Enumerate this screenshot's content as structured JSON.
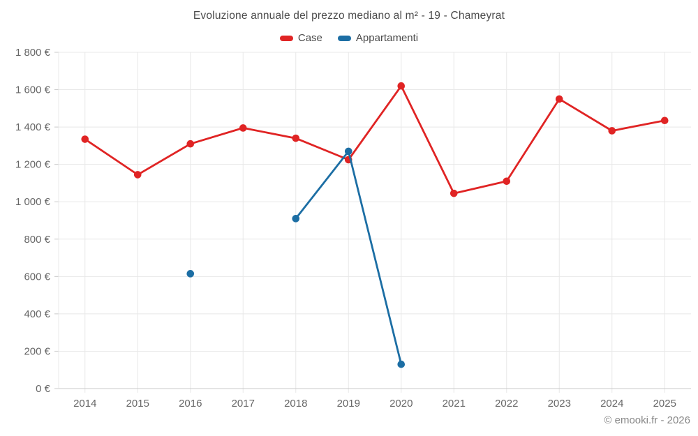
{
  "title": "Evoluzione annuale del prezzo mediano al m² - 19 - Chameyrat",
  "watermark": "© emooki.fr - 2026",
  "legend": [
    {
      "label": "Case",
      "color": "#e02424"
    },
    {
      "label": "Appartamenti",
      "color": "#1c6ea4"
    }
  ],
  "chart_data": {
    "type": "line",
    "title": "Evoluzione annuale del prezzo mediano al m² - 19 - Chameyrat",
    "categories": [
      "2014",
      "2015",
      "2016",
      "2017",
      "2018",
      "2019",
      "2020",
      "2021",
      "2022",
      "2023",
      "2024",
      "2025"
    ],
    "series": [
      {
        "name": "Case",
        "color": "#e02424",
        "values": [
          1335,
          1145,
          1310,
          1395,
          1340,
          1225,
          1620,
          1045,
          1110,
          1550,
          1380,
          1435
        ]
      },
      {
        "name": "Appartamenti",
        "color": "#1c6ea4",
        "values": [
          null,
          null,
          615,
          null,
          910,
          1270,
          130,
          null,
          null,
          null,
          null,
          null
        ]
      }
    ],
    "xlabel": "",
    "ylabel": "",
    "ylim": [
      0,
      1800
    ],
    "ytick_step": 200,
    "ytick_labels": [
      "0 €",
      "200 €",
      "400 €",
      "600 €",
      "800 €",
      "1 000 €",
      "1 200 €",
      "1 400 €",
      "1 600 €",
      "1 800 €"
    ],
    "grid": true,
    "legend_position": "top",
    "grid_color": "#e8e8e8",
    "axis_line_color": "#c9c9c9"
  }
}
